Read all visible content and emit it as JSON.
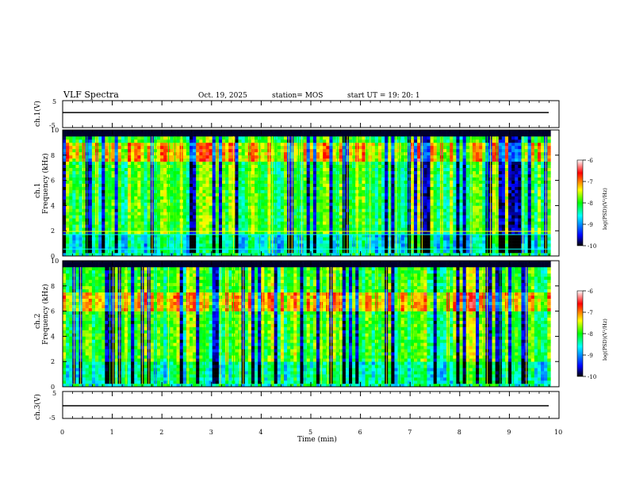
{
  "header": {
    "title": "VLF Spectra",
    "date": "Oct. 19, 2025",
    "station": "station= MOS",
    "start": "start  UT =   19: 20: 1"
  },
  "colors": {
    "spec_low": "#000000",
    "spec_mid_blue": "#0000ff",
    "spec_cyan": "#00ffff",
    "spec_green": "#00ff00",
    "spec_yellow": "#ffff00",
    "spec_red": "#ff0000",
    "spec_white": "#ffffff",
    "line_cyan": "#00ffff",
    "line_yellow": "#ffff00"
  },
  "chart_data": [
    {
      "type": "line",
      "id": "ch1-waveform",
      "ylabel": "ch.1(V)",
      "ylim": [
        -5,
        5
      ],
      "yticks": [
        "5",
        "-5"
      ],
      "series": [
        {
          "name": "ch1",
          "constant_value": 0
        }
      ]
    },
    {
      "type": "heatmap",
      "id": "ch1-spectrogram",
      "ylabel_line1": "ch.1",
      "ylabel_line2": "Frequency (kHz)",
      "ylim": [
        0,
        10
      ],
      "yticks": [
        "0",
        "2",
        "4",
        "6",
        "8",
        "10"
      ],
      "xlim": [
        0,
        9.83
      ],
      "colorbar": {
        "label": "log(PSD)(V²/Hz)",
        "range": [
          -10,
          -6
        ],
        "ticks": [
          "-6",
          "-7",
          "-8",
          "-9",
          "-10"
        ]
      },
      "reference_lines_khz": [
        1.7,
        1.95,
        0.55
      ],
      "typical_band_khz": [
        0.5,
        9.5
      ],
      "strong_band_khz": [
        7.5,
        9.0
      ]
    },
    {
      "type": "heatmap",
      "id": "ch2-spectrogram",
      "ylabel_line1": "ch.2",
      "ylabel_line2": "Frequency (kHz)",
      "ylim": [
        0,
        10
      ],
      "yticks": [
        "0",
        "2",
        "4",
        "6",
        "8",
        "10"
      ],
      "xlim": [
        0,
        9.83
      ],
      "colorbar": {
        "label": "log(PSD)(V²/Hz)",
        "range": [
          -10,
          -6
        ],
        "ticks": [
          "-6",
          "-7",
          "-8",
          "-9",
          "-10"
        ]
      },
      "typical_band_khz": [
        0.5,
        9.5
      ],
      "strong_band_khz": [
        6.0,
        7.5
      ]
    },
    {
      "type": "line",
      "id": "ch3-waveform",
      "ylabel": "ch.3(V)",
      "ylim": [
        -5,
        5
      ],
      "yticks": [
        "5",
        "-5"
      ],
      "series": [
        {
          "name": "ch3",
          "constant_value": 0
        }
      ]
    }
  ],
  "x_axis": {
    "label": "Time  (min)",
    "range": [
      0,
      10
    ],
    "ticks": [
      "0",
      "1",
      "2",
      "3",
      "4",
      "5",
      "6",
      "7",
      "8",
      "9",
      "10"
    ]
  }
}
